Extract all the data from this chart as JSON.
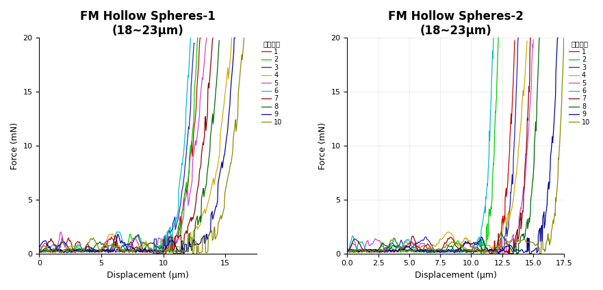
{
  "title1": "FM Hollow Spheres-1",
  "title2": "FM Hollow Spheres-2",
  "subtitle": "(18~23μm)",
  "xlabel": "Displacement (μm)",
  "ylabel": "Force (mN)",
  "ylim": [
    0,
    20
  ],
  "legend_title": "数据曲线",
  "colors": [
    "#cc0000",
    "#00cc00",
    "#2222bb",
    "#ccaa00",
    "#cc44cc",
    "#00bbcc",
    "#880000",
    "#006600",
    "#000099",
    "#888800"
  ],
  "labels": [
    "1",
    "2",
    "3",
    "4",
    "5",
    "6",
    "7",
    "8",
    "9",
    "10"
  ],
  "plot1_xlim": [
    0,
    17.5
  ],
  "plot1_xticks": [
    0,
    5,
    10,
    15
  ],
  "plot2_xlim": [
    0,
    17.5
  ],
  "plot2_xticks": [
    0,
    2.5,
    5,
    7.5,
    10,
    12.5,
    15,
    17.5
  ],
  "curves1_params": [
    [
      9.5,
      13.0,
      20.0
    ],
    [
      9.8,
      12.8,
      20.0
    ],
    [
      9.2,
      12.5,
      19.5
    ],
    [
      10.5,
      15.5,
      20.0
    ],
    [
      9.0,
      13.5,
      20.0
    ],
    [
      9.3,
      12.2,
      20.0
    ],
    [
      10.0,
      14.0,
      20.0
    ],
    [
      10.8,
      14.5,
      20.0
    ],
    [
      11.5,
      15.8,
      20.0
    ],
    [
      12.0,
      16.5,
      20.0
    ]
  ],
  "curves2_params": [
    [
      11.5,
      13.5,
      20.0
    ],
    [
      10.5,
      12.2,
      20.0
    ],
    [
      12.0,
      13.8,
      20.0
    ],
    [
      11.0,
      14.5,
      20.0
    ],
    [
      12.5,
      15.0,
      20.0
    ],
    [
      10.0,
      11.8,
      20.0
    ],
    [
      13.0,
      14.8,
      20.0
    ],
    [
      13.5,
      15.5,
      20.0
    ],
    [
      14.5,
      17.0,
      20.0
    ],
    [
      15.5,
      17.5,
      20.0
    ]
  ]
}
